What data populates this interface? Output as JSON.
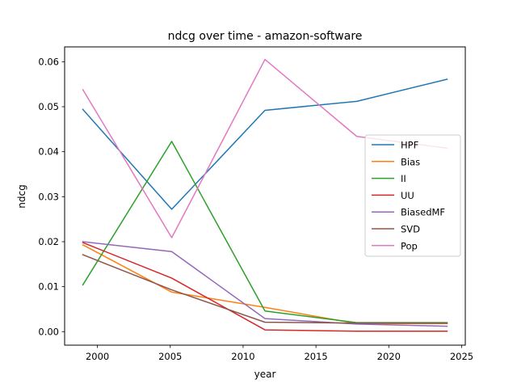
{
  "chart_data": {
    "type": "line",
    "title": "ndcg over time - amazon-software",
    "xlabel": "year",
    "ylabel": "ndcg",
    "xlim": [
      1997.75,
      2025.25
    ],
    "ylim": [
      -0.003,
      0.0633
    ],
    "xticks": [
      2000,
      2005,
      2010,
      2015,
      2020,
      2025
    ],
    "yticks": [
      0.0,
      0.01,
      0.02,
      0.03,
      0.04,
      0.05,
      0.06
    ],
    "ytick_labels": [
      "0.00",
      "0.01",
      "0.02",
      "0.03",
      "0.04",
      "0.05",
      "0.06"
    ],
    "x": [
      1999,
      2005.1,
      2011.5,
      2017.8,
      2024
    ],
    "grid": false,
    "legend_position": "center-right",
    "series": [
      {
        "name": "HPF",
        "color": "#1f77b4",
        "values": [
          0.0494,
          0.0272,
          0.0492,
          0.0512,
          0.0561
        ]
      },
      {
        "name": "Bias",
        "color": "#ff7f0e",
        "values": [
          0.0193,
          0.0088,
          0.0054,
          0.0018,
          0.0018
        ]
      },
      {
        "name": "II",
        "color": "#2ca02c",
        "values": [
          0.0104,
          0.0423,
          0.0046,
          0.002,
          0.002
        ]
      },
      {
        "name": "UU",
        "color": "#d62728",
        "values": [
          0.0198,
          0.0119,
          0.0004,
          0.0001,
          0.0001
        ]
      },
      {
        "name": "BiasedMF",
        "color": "#9467bd",
        "values": [
          0.02,
          0.0178,
          0.0029,
          0.0017,
          0.0012
        ]
      },
      {
        "name": "SVD",
        "color": "#8c564b",
        "values": [
          0.0171,
          0.0093,
          0.0021,
          0.0019,
          0.0019
        ]
      },
      {
        "name": "Pop",
        "color": "#e377c2",
        "values": [
          0.0538,
          0.0209,
          0.0605,
          0.0434,
          0.0408
        ]
      }
    ]
  }
}
